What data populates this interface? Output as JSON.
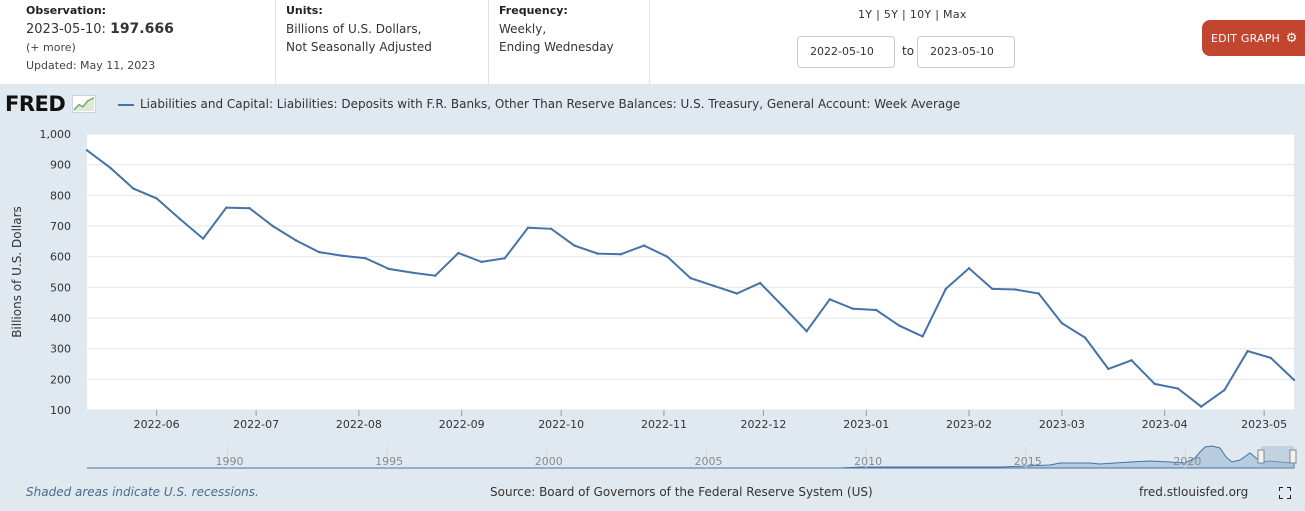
{
  "header": {
    "observation": {
      "label": "Observation:",
      "date": "2023-05-10:",
      "value": "197.666",
      "more": "(+ more)",
      "updated": "Updated: May 11, 2023"
    },
    "units": {
      "label": "Units:",
      "line1": "Billions of U.S. Dollars,",
      "line2": "Not Seasonally Adjusted"
    },
    "frequency": {
      "label": "Frequency:",
      "line1": "Weekly,",
      "line2": "Ending Wednesday"
    },
    "range_links": "1Y | 5Y | 10Y | Max",
    "start_date": "2022-05-10",
    "to_label": "to",
    "end_date": "2023-05-10",
    "edit_button": "EDIT GRAPH"
  },
  "logo_text": "FRED",
  "legend": "Liabilities and Capital: Liabilities: Deposits with F.R. Banks, Other Than Reserve Balances: U.S. Treasury, General Account: Week Average",
  "footer": {
    "recession_note": "Shaded areas indicate U.S. recessions.",
    "source": "Source: Board of Governors of the Federal Reserve System (US)",
    "site": "fred.stlouisfed.org"
  },
  "colors": {
    "line": "#4572a7",
    "panel": "#e1e9f0",
    "button": "#c1452f"
  },
  "chart_data": {
    "type": "line",
    "title": "",
    "xlabel": "",
    "ylabel": "Billions of U.S. Dollars",
    "ylim": [
      100,
      1000
    ],
    "y_ticks": [
      100,
      200,
      300,
      400,
      500,
      600,
      700,
      800,
      900,
      1000
    ],
    "y_tick_labels": [
      "100",
      "200",
      "300",
      "400",
      "500",
      "600",
      "700",
      "800",
      "900",
      "1,000"
    ],
    "x_start": "2022-05-11",
    "x_end": "2023-05-10",
    "x_tick_labels": [
      {
        "date": "2022-06-01",
        "label": "2022-06"
      },
      {
        "date": "2022-07-01",
        "label": "2022-07"
      },
      {
        "date": "2022-08-01",
        "label": "2022-08"
      },
      {
        "date": "2022-09-01",
        "label": "2022-09"
      },
      {
        "date": "2022-10-01",
        "label": "2022-10"
      },
      {
        "date": "2022-11-01",
        "label": "2022-11"
      },
      {
        "date": "2022-12-01",
        "label": "2022-12"
      },
      {
        "date": "2023-01-01",
        "label": "2023-01"
      },
      {
        "date": "2023-02-01",
        "label": "2023-02"
      },
      {
        "date": "2023-03-01",
        "label": "2023-03"
      },
      {
        "date": "2023-04-01",
        "label": "2023-04"
      },
      {
        "date": "2023-05-01",
        "label": "2023-05"
      }
    ],
    "series": [
      {
        "name": "Liabilities and Capital: Liabilities: Deposits with F.R. Banks, Other Than Reserve Balances: U.S. Treasury, General Account: Week Average",
        "x": [
          "2022-05-11",
          "2022-05-18",
          "2022-05-25",
          "2022-06-01",
          "2022-06-08",
          "2022-06-15",
          "2022-06-22",
          "2022-06-29",
          "2022-07-06",
          "2022-07-13",
          "2022-07-20",
          "2022-07-27",
          "2022-08-03",
          "2022-08-10",
          "2022-08-17",
          "2022-08-24",
          "2022-08-31",
          "2022-09-07",
          "2022-09-14",
          "2022-09-21",
          "2022-09-28",
          "2022-10-05",
          "2022-10-12",
          "2022-10-19",
          "2022-10-26",
          "2022-11-02",
          "2022-11-09",
          "2022-11-16",
          "2022-11-23",
          "2022-11-30",
          "2022-12-07",
          "2022-12-14",
          "2022-12-21",
          "2022-12-28",
          "2023-01-04",
          "2023-01-11",
          "2023-01-18",
          "2023-01-25",
          "2023-02-01",
          "2023-02-08",
          "2023-02-15",
          "2023-02-22",
          "2023-03-01",
          "2023-03-08",
          "2023-03-15",
          "2023-03-22",
          "2023-03-29",
          "2023-04-05",
          "2023-04-12",
          "2023-04-19",
          "2023-04-26",
          "2023-05-03",
          "2023-05-10"
        ],
        "values": [
          947,
          890,
          822,
          790,
          723,
          659,
          760,
          758,
          700,
          653,
          615,
          603,
          595,
          560,
          548,
          538,
          612,
          583,
          595,
          694,
          691,
          636,
          610,
          608,
          636,
          600,
          530,
          505,
          480,
          514,
          437,
          357,
          461,
          430,
          426,
          375,
          340,
          495,
          562,
          495,
          493,
          480,
          383,
          336,
          234,
          262,
          185,
          170,
          111,
          165,
          292,
          270,
          198
        ]
      }
    ],
    "navigator": {
      "tick_labels": [
        "1990",
        "1995",
        "2000",
        "2005",
        "2010",
        "2015",
        "2020"
      ]
    }
  }
}
